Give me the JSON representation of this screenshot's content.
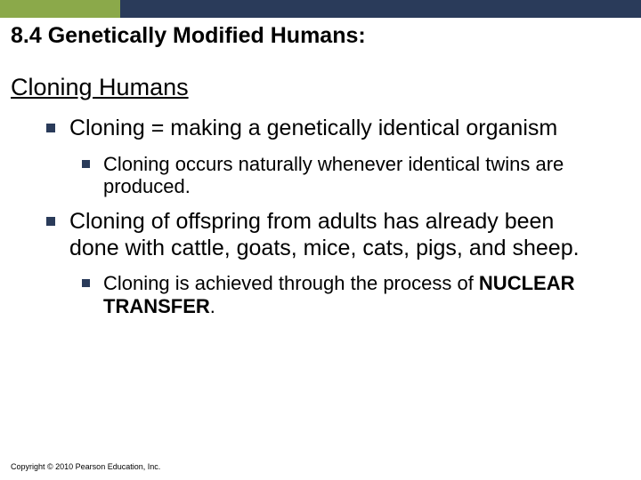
{
  "colors": {
    "accent_green": "#8ba94a",
    "accent_navy": "#2a3b5a",
    "text": "#000000",
    "background": "#ffffff"
  },
  "typography": {
    "section_title_size": 25,
    "subtitle_size": 27,
    "lvl1_size": 25,
    "lvl2_size": 22,
    "copyright_size": 9,
    "font_family": "Arial"
  },
  "header": {
    "section_title": "8.4 Genetically Modified Humans:",
    "subtitle": "Cloning Humans"
  },
  "bullets": [
    {
      "text": "Cloning = making a genetically identical organism",
      "children": [
        {
          "text": "Cloning occurs naturally whenever identical twins are produced."
        }
      ]
    },
    {
      "text": "Cloning of offspring from adults has already been done with cattle, goats, mice, cats, pigs, and sheep.",
      "children": [
        {
          "text_prefix": "Cloning is achieved through the process of ",
          "text_bold": "NUCLEAR TRANSFER",
          "text_suffix": "."
        }
      ]
    }
  ],
  "footer": {
    "copyright": "Copyright © 2010 Pearson Education, Inc."
  }
}
